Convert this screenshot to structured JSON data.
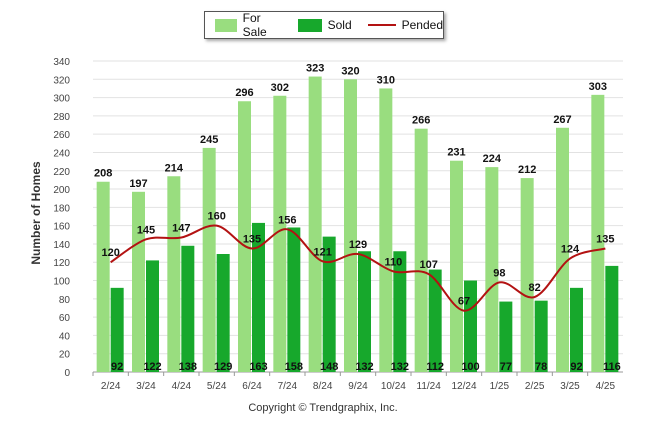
{
  "chart_data": {
    "type": "bar",
    "categories": [
      "2/24",
      "3/24",
      "4/24",
      "5/24",
      "6/24",
      "7/24",
      "8/24",
      "9/24",
      "10/24",
      "11/24",
      "12/24",
      "1/25",
      "2/25",
      "3/25",
      "4/25"
    ],
    "series": [
      {
        "name": "For Sale",
        "kind": "bar",
        "color": "#99dd7f",
        "values": [
          208,
          197,
          214,
          245,
          296,
          302,
          323,
          320,
          310,
          266,
          231,
          224,
          212,
          267,
          303
        ]
      },
      {
        "name": "Sold",
        "kind": "bar",
        "color": "#17a82c",
        "values": [
          92,
          122,
          138,
          129,
          163,
          158,
          148,
          132,
          132,
          112,
          100,
          77,
          78,
          92,
          116
        ]
      },
      {
        "name": "Pended",
        "kind": "line",
        "color": "#b31212",
        "values": [
          120,
          145,
          147,
          160,
          135,
          156,
          121,
          129,
          110,
          107,
          67,
          98,
          82,
          124,
          135
        ]
      }
    ],
    "ylabel": "Number of Homes",
    "ylim": [
      0,
      340
    ],
    "yticks": [
      0,
      20,
      40,
      60,
      80,
      100,
      120,
      140,
      160,
      180,
      200,
      220,
      240,
      260,
      280,
      300,
      320,
      340
    ],
    "grid": true,
    "legend_position": "top-center"
  },
  "footer": "Copyright © Trendgraphix, Inc."
}
